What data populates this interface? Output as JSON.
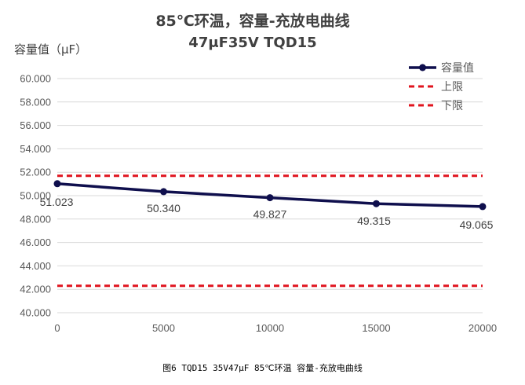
{
  "chart_data": {
    "type": "line",
    "title": "85℃环温，容量-充放电曲线",
    "subtitle": "47μF35V  TQD15",
    "ylabel": "容量值（μF）",
    "xlabel": "",
    "x": [
      0,
      5000,
      10000,
      15000,
      20000
    ],
    "x_tick_labels": [
      "0",
      "5000",
      "10000",
      "15000",
      "20000"
    ],
    "ylim": [
      40,
      60
    ],
    "xlim": [
      0,
      20000
    ],
    "y_tick_labels": [
      "40.000",
      "42.000",
      "44.000",
      "46.000",
      "48.000",
      "50.000",
      "52.000",
      "54.000",
      "56.000",
      "58.000",
      "60.000"
    ],
    "grid": "horizontal",
    "legend_position": "top-right",
    "series": [
      {
        "name": "容量值",
        "values": [
          51.023,
          50.34,
          49.827,
          49.315,
          49.065
        ],
        "color": "#0f0f4d",
        "style": "solid-marker",
        "data_labels": [
          "51.023",
          "50.340",
          "49.827",
          "49.315",
          "49.065"
        ]
      },
      {
        "name": "上限",
        "values": [
          51.7,
          51.7,
          51.7,
          51.7,
          51.7
        ],
        "color": "#e0141e",
        "style": "dashed"
      },
      {
        "name": "下限",
        "values": [
          42.3,
          42.3,
          42.3,
          42.3,
          42.3
        ],
        "color": "#e0141e",
        "style": "dashed"
      }
    ]
  },
  "caption": "图6 TQD15 35V47μF 85℃环温 容量-充放电曲线"
}
